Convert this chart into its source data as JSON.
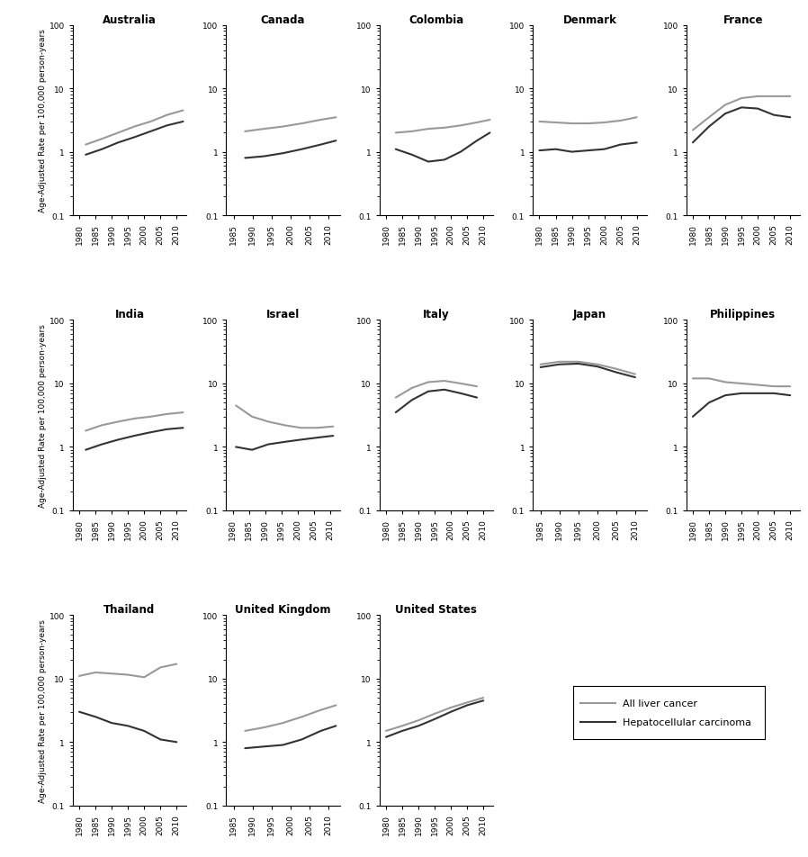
{
  "countries": [
    "Australia",
    "Canada",
    "Colombia",
    "Denmark",
    "France",
    "India",
    "Israel",
    "Italy",
    "Japan",
    "Philippines",
    "Thailand",
    "United Kingdom",
    "United States"
  ],
  "layout": [
    [
      0,
      1,
      2,
      3,
      4
    ],
    [
      5,
      6,
      7,
      8,
      9
    ],
    [
      10,
      11,
      12,
      -1,
      -1
    ]
  ],
  "data": {
    "Australia": {
      "years_all": [
        1982,
        1987,
        1992,
        1997,
        2002,
        2007,
        2012
      ],
      "all_liver": [
        1.3,
        1.6,
        2.0,
        2.5,
        3.0,
        3.8,
        4.5
      ],
      "hcc": [
        0.9,
        1.1,
        1.4,
        1.7,
        2.1,
        2.6,
        3.0
      ],
      "xstart": 1980
    },
    "Canada": {
      "years_all": [
        1988,
        1993,
        1998,
        2003,
        2008,
        2012
      ],
      "all_liver": [
        2.1,
        2.3,
        2.5,
        2.8,
        3.2,
        3.5
      ],
      "hcc": [
        0.8,
        0.85,
        0.95,
        1.1,
        1.3,
        1.5
      ],
      "xstart": 1985
    },
    "Colombia": {
      "years_all": [
        1983,
        1988,
        1993,
        1998,
        2003,
        2008,
        2012
      ],
      "all_liver": [
        2.0,
        2.1,
        2.3,
        2.4,
        2.6,
        2.9,
        3.2
      ],
      "hcc": [
        1.1,
        0.9,
        0.7,
        0.75,
        1.0,
        1.5,
        2.0
      ],
      "xstart": 1980
    },
    "Denmark": {
      "years_all": [
        1980,
        1985,
        1990,
        1995,
        2000,
        2005,
        2010
      ],
      "all_liver": [
        3.0,
        2.9,
        2.8,
        2.8,
        2.9,
        3.1,
        3.5
      ],
      "hcc": [
        1.05,
        1.1,
        1.0,
        1.05,
        1.1,
        1.3,
        1.4
      ],
      "xstart": 1980
    },
    "France": {
      "years_all": [
        1980,
        1985,
        1990,
        1995,
        2000,
        2005,
        2010
      ],
      "all_liver": [
        2.2,
        3.5,
        5.5,
        7.0,
        7.5,
        7.5,
        7.5
      ],
      "hcc": [
        1.4,
        2.5,
        4.0,
        5.0,
        4.8,
        3.8,
        3.5
      ],
      "xstart": 1980
    },
    "India": {
      "years_all": [
        1982,
        1987,
        1992,
        1997,
        2002,
        2007,
        2012
      ],
      "all_liver": [
        1.8,
        2.2,
        2.5,
        2.8,
        3.0,
        3.3,
        3.5
      ],
      "hcc": [
        0.9,
        1.1,
        1.3,
        1.5,
        1.7,
        1.9,
        2.0
      ],
      "xstart": 1980
    },
    "Israel": {
      "years_all": [
        1981,
        1986,
        1991,
        1996,
        2001,
        2006,
        2011
      ],
      "all_liver": [
        4.5,
        3.0,
        2.5,
        2.2,
        2.0,
        2.0,
        2.1
      ],
      "hcc": [
        1.0,
        0.9,
        1.1,
        1.2,
        1.3,
        1.4,
        1.5
      ],
      "xstart": 1980
    },
    "Italy": {
      "years_all": [
        1983,
        1988,
        1993,
        1998,
        2003,
        2008
      ],
      "all_liver": [
        6.0,
        8.5,
        10.5,
        11.0,
        10.0,
        9.0
      ],
      "hcc": [
        3.5,
        5.5,
        7.5,
        8.0,
        7.0,
        6.0
      ],
      "xstart": 1980
    },
    "Japan": {
      "years_all": [
        1985,
        1990,
        1995,
        2000,
        2005,
        2010
      ],
      "all_liver": [
        20.0,
        22.0,
        22.0,
        20.0,
        17.0,
        14.0
      ],
      "hcc": [
        18.0,
        20.0,
        20.5,
        18.5,
        15.0,
        12.5
      ],
      "xstart": 1985
    },
    "Philippines": {
      "years_all": [
        1980,
        1985,
        1990,
        1995,
        2000,
        2005,
        2010
      ],
      "all_liver": [
        12.0,
        12.0,
        10.5,
        10.0,
        9.5,
        9.0,
        9.0
      ],
      "hcc": [
        3.0,
        5.0,
        6.5,
        7.0,
        7.0,
        7.0,
        6.5
      ],
      "xstart": 1980
    },
    "Thailand": {
      "years_all": [
        1980,
        1985,
        1990,
        1995,
        2000,
        2005,
        2010
      ],
      "all_liver": [
        11.0,
        12.5,
        12.0,
        11.5,
        10.5,
        15.0,
        17.0
      ],
      "hcc": [
        3.0,
        2.5,
        2.0,
        1.8,
        1.5,
        1.1,
        1.0
      ],
      "xstart": 1980
    },
    "United Kingdom": {
      "years_all": [
        1988,
        1993,
        1998,
        2003,
        2008,
        2012
      ],
      "all_liver": [
        1.5,
        1.7,
        2.0,
        2.5,
        3.2,
        3.8
      ],
      "hcc": [
        0.8,
        0.85,
        0.9,
        1.1,
        1.5,
        1.8
      ],
      "xstart": 1985
    },
    "United States": {
      "years_all": [
        1980,
        1985,
        1990,
        1995,
        2000,
        2005,
        2010
      ],
      "all_liver": [
        1.5,
        1.8,
        2.2,
        2.8,
        3.5,
        4.2,
        5.0
      ],
      "hcc": [
        1.2,
        1.5,
        1.8,
        2.3,
        3.0,
        3.8,
        4.5
      ],
      "xstart": 1980
    }
  },
  "color_all": "#999999",
  "color_hcc": "#333333",
  "ylabel": "Age-Adjusted Rate per 100,000 person-years",
  "legend_all": "All liver cancer",
  "legend_hcc": "Hepatocellular carcinoma",
  "ylim": [
    0.1,
    100
  ],
  "yticks": [
    0.1,
    1,
    10,
    100
  ],
  "xlim": [
    1978,
    2013
  ],
  "xticks": [
    1980,
    1985,
    1990,
    1995,
    2000,
    2005,
    2010
  ]
}
